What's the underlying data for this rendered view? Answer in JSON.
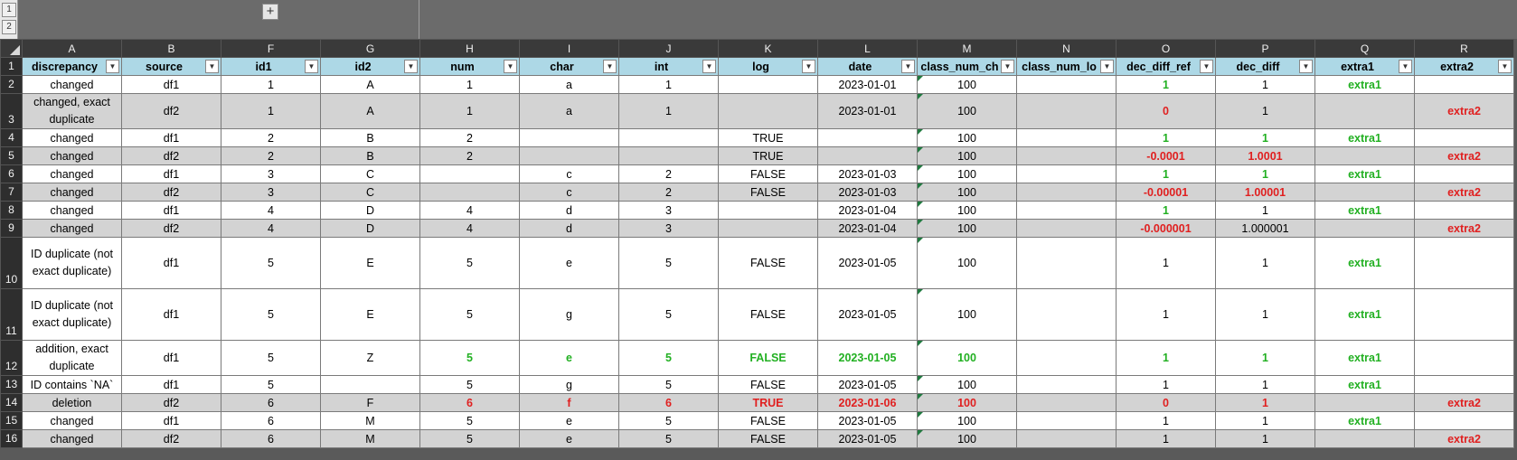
{
  "outline": {
    "levels": [
      "1",
      "2"
    ],
    "expand_symbol": "+"
  },
  "columns": [
    "A",
    "B",
    "F",
    "G",
    "H",
    "I",
    "J",
    "K",
    "L",
    "M",
    "N",
    "O",
    "P",
    "Q",
    "R"
  ],
  "headers": [
    "discrepancy",
    "source",
    "id1",
    "id2",
    "num",
    "char",
    "int",
    "log",
    "date",
    "class_num_ch",
    "class_num_lo",
    "dec_diff_ref",
    "dec_diff",
    "extra1",
    "extra2"
  ],
  "row_numbers": [
    "1",
    "2",
    "3",
    "4",
    "5",
    "6",
    "7",
    "8",
    "9",
    "10",
    "11",
    "12",
    "13",
    "14",
    "15",
    "16"
  ],
  "rows": [
    [
      "changed",
      "df1",
      "1",
      "A",
      "1",
      "a",
      "1",
      "",
      "2023-01-01",
      "100",
      "",
      "1",
      "1",
      "extra1",
      ""
    ],
    [
      "changed, exact duplicate",
      "df2",
      "1",
      "A",
      "1",
      "a",
      "1",
      "",
      "2023-01-01",
      "100",
      "",
      "0",
      "1",
      "",
      "extra2"
    ],
    [
      "changed",
      "df1",
      "2",
      "B",
      "2",
      "",
      "",
      "TRUE",
      "",
      "100",
      "",
      "1",
      "1",
      "extra1",
      ""
    ],
    [
      "changed",
      "df2",
      "2",
      "B",
      "2",
      "",
      "",
      "TRUE",
      "",
      "100",
      "",
      "-0.0001",
      "1.0001",
      "",
      "extra2"
    ],
    [
      "changed",
      "df1",
      "3",
      "C",
      "",
      "c",
      "2",
      "FALSE",
      "2023-01-03",
      "100",
      "",
      "1",
      "1",
      "extra1",
      ""
    ],
    [
      "changed",
      "df2",
      "3",
      "C",
      "",
      "c",
      "2",
      "FALSE",
      "2023-01-03",
      "100",
      "",
      "-0.00001",
      "1.00001",
      "",
      "extra2"
    ],
    [
      "changed",
      "df1",
      "4",
      "D",
      "4",
      "d",
      "3",
      "",
      "2023-01-04",
      "100",
      "",
      "1",
      "1",
      "extra1",
      ""
    ],
    [
      "changed",
      "df2",
      "4",
      "D",
      "4",
      "d",
      "3",
      "",
      "2023-01-04",
      "100",
      "",
      "-0.000001",
      "1.000001",
      "",
      "extra2"
    ],
    [
      "ID duplicate (not exact duplicate)",
      "df1",
      "5",
      "E",
      "5",
      "e",
      "5",
      "FALSE",
      "2023-01-05",
      "100",
      "",
      "1",
      "1",
      "extra1",
      ""
    ],
    [
      "ID duplicate (not exact duplicate)",
      "df1",
      "5",
      "E",
      "5",
      "g",
      "5",
      "FALSE",
      "2023-01-05",
      "100",
      "",
      "1",
      "1",
      "extra1",
      ""
    ],
    [
      "addition, exact duplicate",
      "df1",
      "5",
      "Z",
      "5",
      "e",
      "5",
      "FALSE",
      "2023-01-05",
      "100",
      "",
      "1",
      "1",
      "extra1",
      ""
    ],
    [
      "ID contains `NA`",
      "df1",
      "5",
      "",
      "5",
      "g",
      "5",
      "FALSE",
      "2023-01-05",
      "100",
      "",
      "1",
      "1",
      "extra1",
      ""
    ],
    [
      "deletion",
      "df2",
      "6",
      "F",
      "6",
      "f",
      "6",
      "TRUE",
      "2023-01-06",
      "100",
      "",
      "0",
      "1",
      "",
      "extra2"
    ],
    [
      "changed",
      "df1",
      "6",
      "M",
      "5",
      "e",
      "5",
      "FALSE",
      "2023-01-05",
      "100",
      "",
      "1",
      "1",
      "extra1",
      ""
    ],
    [
      "changed",
      "df2",
      "6",
      "M",
      "5",
      "e",
      "5",
      "FALSE",
      "2023-01-05",
      "100",
      "",
      "1",
      "1",
      "",
      "extra2"
    ]
  ],
  "gray_rows": [
    1,
    3,
    5,
    7,
    12,
    14
  ],
  "colors": {
    "header_fill": "#add8e6",
    "gray_fill": "#d3d3d3",
    "green": "#22b022",
    "red": "#e02020",
    "num_as_text_marker": "#1f7a3f"
  },
  "icons": {
    "filter": "filter-dropdown-icon",
    "select_all": "select-all-triangle-icon"
  }
}
